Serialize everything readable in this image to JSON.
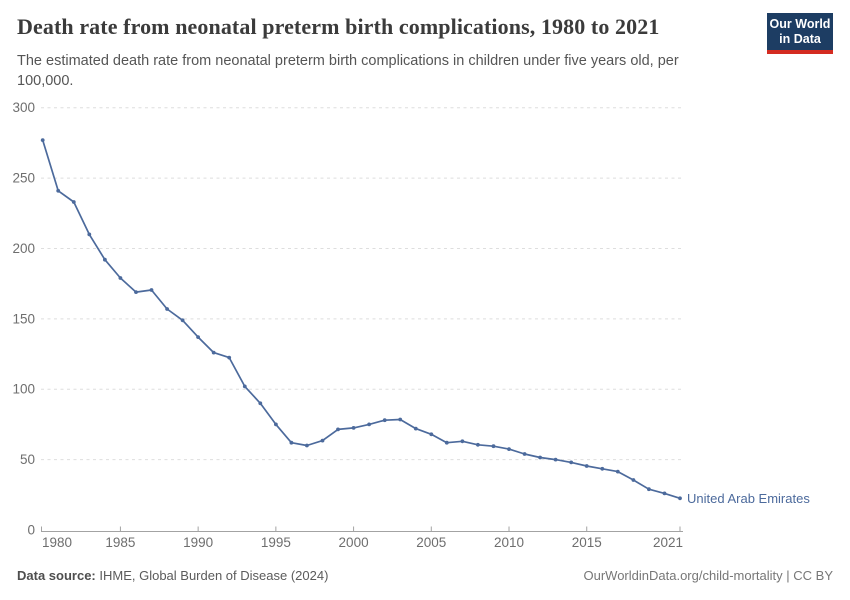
{
  "header": {
    "title": "Death rate from neonatal preterm birth complications, 1980 to 2021",
    "subtitle_line1": "The estimated death rate from neonatal preterm birth complications in children under five years old, per",
    "subtitle_line2": "100,000.",
    "logo": {
      "line1": "Our World",
      "line2": "in Data",
      "bg_color": "#1d3d63",
      "accent_color": "#d42b21"
    }
  },
  "chart_data": {
    "type": "line",
    "title": "Death rate from neonatal preterm birth complications, 1980 to 2021",
    "xlabel": "",
    "ylabel": "",
    "xlim": [
      1980,
      2021
    ],
    "ylim": [
      0,
      300
    ],
    "grid": "horizontal-dashed",
    "legend_position": "end-of-line-label",
    "line_color": "#4C6A9C",
    "x": [
      1980,
      1981,
      1982,
      1983,
      1984,
      1985,
      1986,
      1987,
      1988,
      1989,
      1990,
      1991,
      1992,
      1993,
      1994,
      1995,
      1996,
      1997,
      1998,
      1999,
      2000,
      2001,
      2002,
      2003,
      2004,
      2005,
      2006,
      2007,
      2008,
      2009,
      2010,
      2011,
      2012,
      2013,
      2014,
      2015,
      2016,
      2017,
      2018,
      2019,
      2020,
      2021
    ],
    "series": [
      {
        "name": "United Arab Emirates",
        "values": [
          277,
          241,
          233,
          210,
          192,
          179,
          169,
          170.5,
          157,
          149,
          137,
          126,
          122.5,
          102,
          90,
          75,
          62,
          60,
          63.5,
          71.5,
          72.5,
          75,
          78,
          78.5,
          72,
          68,
          62,
          63,
          60.5,
          59.5,
          57.5,
          54,
          51.5,
          50,
          48,
          45.5,
          43.5,
          41.5,
          35.5,
          29,
          26,
          22.5
        ]
      }
    ],
    "x_ticks": [
      1980,
      1985,
      1990,
      1995,
      2000,
      2005,
      2010,
      2015,
      2021
    ],
    "y_ticks": [
      0,
      50,
      100,
      150,
      200,
      250,
      300
    ]
  },
  "footer": {
    "source_label": "Data source:",
    "source_text": " IHME, Global Burden of Disease (2024)",
    "credit": "OurWorldinData.org/child-mortality | CC BY"
  }
}
